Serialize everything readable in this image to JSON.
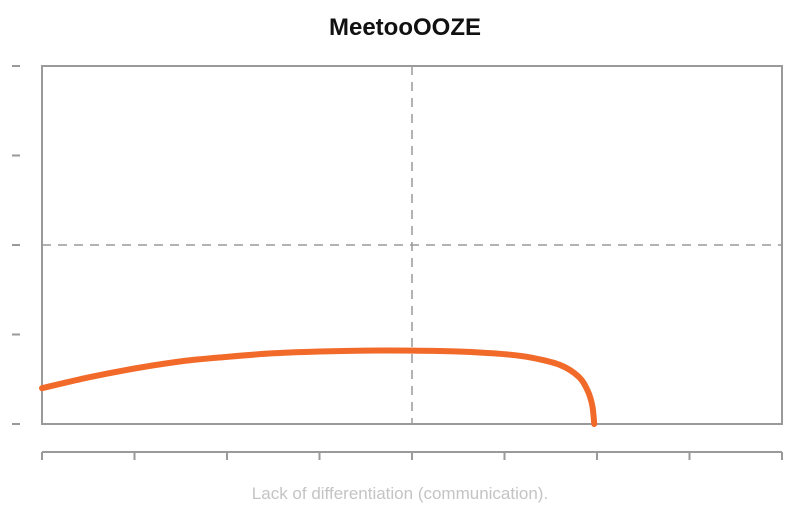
{
  "chart_data": {
    "type": "line",
    "title": "MeetooOOZE",
    "xlabel": "Lack of differentiation (communication).",
    "ylabel": "",
    "xlim": [
      0,
      8
    ],
    "ylim": [
      0,
      4
    ],
    "x_tick_count": 9,
    "y_tick_count": 5,
    "grid": false,
    "reference_lines": {
      "vertical_x": 4,
      "horizontal_y": 2,
      "style": "dashed"
    },
    "series": [
      {
        "color": "#f26a2a",
        "x": [
          0,
          0.5,
          1,
          1.5,
          2,
          2.5,
          3,
          3.5,
          4,
          4.5,
          5,
          5.3,
          5.6,
          5.8,
          5.9,
          5.95,
          5.97
        ],
        "y": [
          0.4,
          0.52,
          0.62,
          0.7,
          0.75,
          0.79,
          0.81,
          0.82,
          0.82,
          0.81,
          0.78,
          0.74,
          0.66,
          0.53,
          0.37,
          0.2,
          0
        ]
      }
    ]
  }
}
